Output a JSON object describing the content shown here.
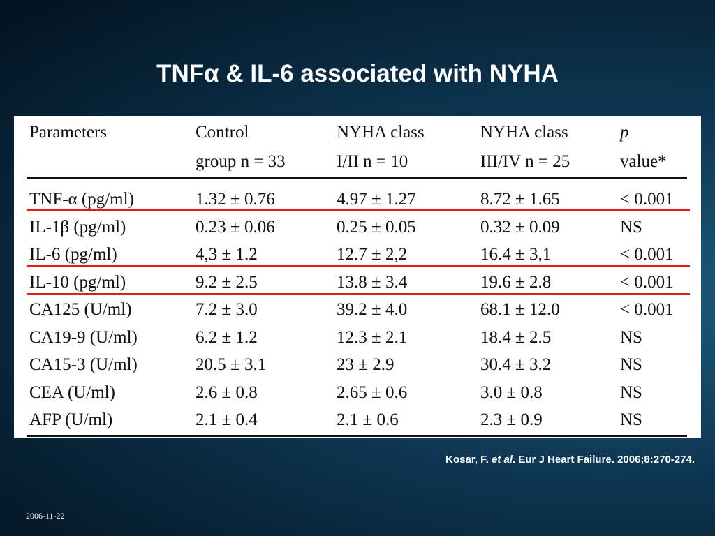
{
  "title": "TNFα & IL-6 associated with NYHA",
  "table": {
    "header": [
      [
        "Parameters",
        ""
      ],
      [
        "Control",
        "group n = 33"
      ],
      [
        "NYHA class",
        "I/II n = 10"
      ],
      [
        "NYHA class",
        "III/IV n = 25"
      ],
      [
        "p",
        "value*"
      ]
    ],
    "rows": [
      [
        "TNF-α (pg/ml)",
        "1.32 ± 0.76",
        "4.97 ± 1.27",
        "8.72 ± 1.65",
        "< 0.001"
      ],
      [
        "IL-1β (pg/ml)",
        "0.23 ± 0.06",
        "0.25 ± 0.05",
        "0.32 ± 0.09",
        "NS"
      ],
      [
        "IL-6 (pg/ml)",
        "4,3 ± 1.2",
        "12.7 ± 2,2",
        "16.4 ± 3,1",
        "< 0.001"
      ],
      [
        "IL-10 (pg/ml)",
        "9.2 ± 2.5",
        "13.8 ± 3.4",
        "19.6 ± 2.8",
        "< 0.001"
      ],
      [
        "CA125 (U/ml)",
        "7.2 ± 3.0",
        "39.2 ± 4.0",
        "68.1 ± 12.0",
        "< 0.001"
      ],
      [
        "CA19-9 (U/ml)",
        "6.2 ± 1.2",
        "12.3 ± 2.1",
        "18.4 ± 2.5",
        "NS"
      ],
      [
        "CA15-3 (U/ml)",
        "20.5 ± 3.1",
        "23 ± 2.9",
        "30.4 ± 3.2",
        "NS"
      ],
      [
        "CEA (U/ml)",
        "2.6 ± 0.8",
        "2.65 ± 0.6",
        "3.0 ± 0.8",
        "NS"
      ],
      [
        "AFP (U/ml)",
        "2.1 ± 0.4",
        "2.1 ± 0.6",
        "2.3 ± 0.9",
        "NS"
      ]
    ]
  },
  "citation": {
    "author": "Kosar, F.",
    "etal": "et al",
    "rest": ". Eur J Heart Failure. 2006;8:270-274."
  },
  "date": "2006-11-22"
}
